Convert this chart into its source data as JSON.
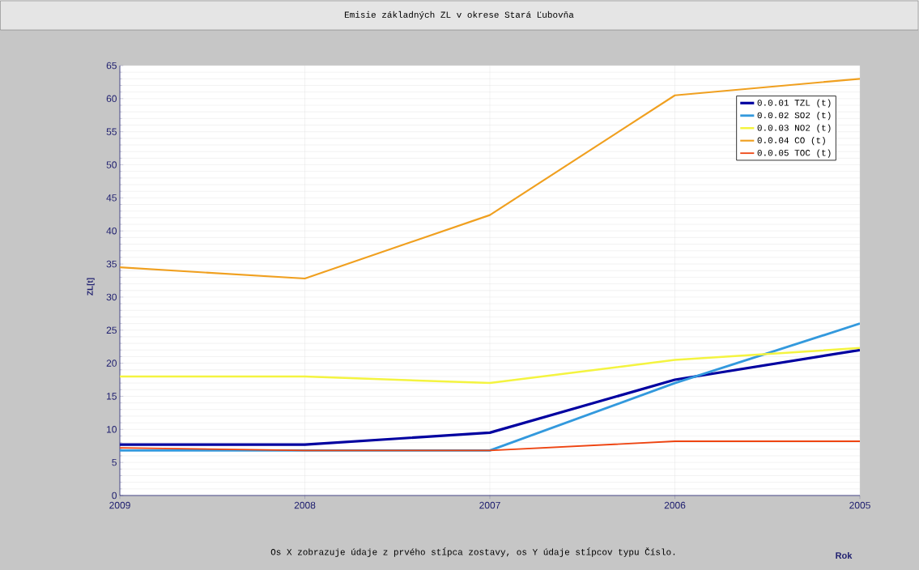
{
  "chart_data": {
    "type": "line",
    "title": "Emisie základných ZL v okrese Stará Ľubovňa",
    "xlabel": "Rok",
    "ylabel": "ZL[t]",
    "annotations": [
      "Os X zobrazuje údaje z prvého stĺpca zostavy, os Y údaje stĺpcov typu Číslo."
    ],
    "categories": [
      "2009",
      "2008",
      "2007",
      "2006",
      "2005"
    ],
    "series": [
      {
        "name": "0.0.01 TZL (t)",
        "color": "#0000a0",
        "values": [
          7.7,
          7.7,
          9.5,
          17.5,
          22
        ]
      },
      {
        "name": "0.0.02 SO2 (t)",
        "color": "#3399dd",
        "values": [
          6.8,
          6.8,
          6.8,
          17,
          26
        ]
      },
      {
        "name": "0.0.03 NO2 (t)",
        "color": "#f4f440",
        "values": [
          18,
          18,
          17,
          20.5,
          22.3
        ]
      },
      {
        "name": "0.0.04 CO (t)",
        "color": "#f0a020",
        "values": [
          34.5,
          32.8,
          42.4,
          60.5,
          63
        ]
      },
      {
        "name": "0.0.05 TOC (t)",
        "color": "#ee4411",
        "values": [
          7.2,
          6.8,
          6.8,
          8.2,
          8.2
        ]
      }
    ],
    "ylim": [
      0,
      65
    ],
    "yticks": [
      0,
      5,
      10,
      15,
      20,
      25,
      30,
      35,
      40,
      45,
      50,
      55,
      60,
      65
    ],
    "grid": true,
    "legend": "top right",
    "marker": "none",
    "line_style": "solid"
  }
}
